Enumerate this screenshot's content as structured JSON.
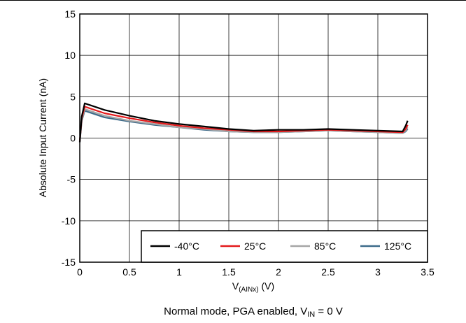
{
  "chart_data": {
    "type": "line",
    "xlabel_main": "V",
    "xlabel_sub": "(AINx)",
    "xlabel_unit": " (V)",
    "ylabel": "Absolute Input Current (nA)",
    "caption_main": "Normal mode, PGA enabled, V",
    "caption_sub": "IN",
    "caption_tail": " = 0 V",
    "xlim": [
      0,
      3.5
    ],
    "ylim": [
      -15,
      15
    ],
    "x_ticks": [
      "0",
      "0.5",
      "1",
      "1.5",
      "2",
      "2.5",
      "3",
      "3.5"
    ],
    "y_ticks": [
      "15",
      "10",
      "5",
      "0",
      "-5",
      "-10",
      "-15"
    ],
    "grid": true,
    "legend_position": "bottom-right",
    "series": [
      {
        "name": "-40°C",
        "color": "#000000",
        "x": [
          0.0,
          0.02,
          0.05,
          0.1,
          0.25,
          0.5,
          0.75,
          1.0,
          1.25,
          1.5,
          1.75,
          2.0,
          2.25,
          2.5,
          2.75,
          3.0,
          3.25,
          3.28,
          3.3
        ],
        "y": [
          -0.5,
          2.6,
          4.2,
          4.0,
          3.4,
          2.7,
          2.1,
          1.7,
          1.4,
          1.1,
          0.9,
          1.0,
          1.0,
          1.1,
          1.0,
          0.9,
          0.8,
          1.5,
          2.1
        ]
      },
      {
        "name": "25°C",
        "color": "#e31a1c",
        "x": [
          0.0,
          0.02,
          0.05,
          0.1,
          0.25,
          0.5,
          0.75,
          1.0,
          1.25,
          1.5,
          1.75,
          2.0,
          2.25,
          2.5,
          2.75,
          3.0,
          3.25,
          3.28,
          3.3
        ],
        "y": [
          -0.4,
          2.4,
          3.8,
          3.6,
          3.0,
          2.4,
          1.9,
          1.5,
          1.2,
          1.0,
          0.8,
          0.8,
          0.9,
          1.0,
          0.9,
          0.8,
          0.7,
          1.1,
          1.6
        ]
      },
      {
        "name": "85°C",
        "color": "#a6a6a6",
        "x": [
          0.0,
          0.02,
          0.05,
          0.1,
          0.25,
          0.5,
          0.75,
          1.0,
          1.25,
          1.5,
          1.75,
          2.0,
          2.25,
          2.5,
          2.75,
          3.0,
          3.25,
          3.28,
          3.3
        ],
        "y": [
          -0.4,
          2.2,
          3.5,
          3.3,
          2.7,
          2.1,
          1.7,
          1.3,
          1.1,
          0.8,
          0.7,
          0.7,
          0.8,
          0.9,
          0.8,
          0.7,
          0.6,
          0.9,
          1.3
        ]
      },
      {
        "name": "125°C",
        "color": "#3d6b8a",
        "x": [
          0.0,
          0.02,
          0.05,
          0.1,
          0.25,
          0.5,
          0.75,
          1.0,
          1.25,
          1.5,
          1.75,
          2.0,
          2.25,
          2.5,
          2.75,
          3.0,
          3.25,
          3.28,
          3.3
        ],
        "y": [
          -0.5,
          2.1,
          3.3,
          3.1,
          2.5,
          2.0,
          1.6,
          1.3,
          1.0,
          0.8,
          0.7,
          0.7,
          0.8,
          0.9,
          0.8,
          0.7,
          0.6,
          0.8,
          1.1
        ]
      }
    ]
  }
}
